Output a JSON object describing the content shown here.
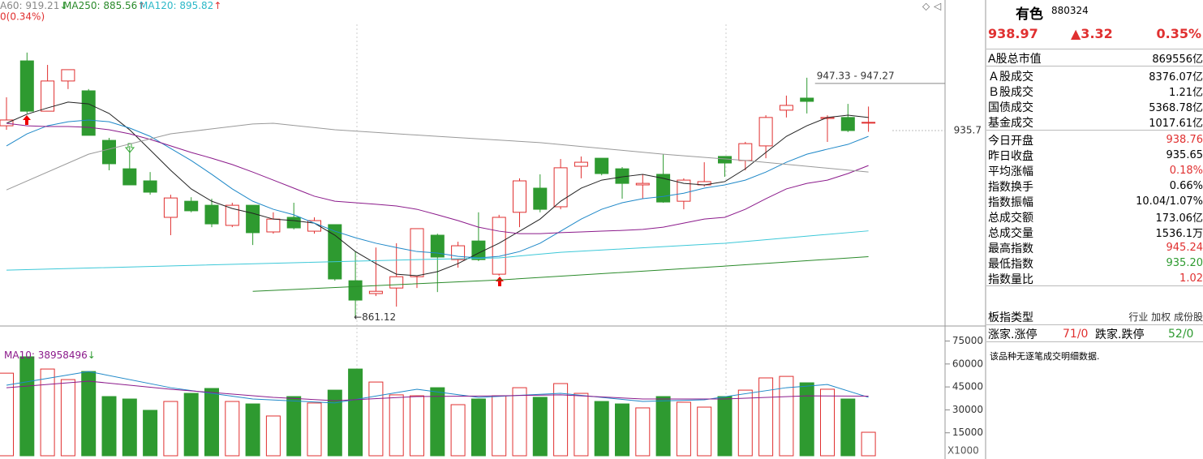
{
  "chart_data": [
    {
      "type": "candlestick",
      "open": [
        937.6,
        963.4,
        943.4,
        955.4,
        951.5,
        931.8,
        920.5,
        915.7,
        901.2,
        907.6,
        906.0,
        898.0,
        906.0,
        895.4,
        901.2,
        895.7,
        898.3,
        876.0,
        870.9,
        873.1,
        877.6,
        894.1,
        884.4,
        891.8,
        878.6,
        903.2,
        912.8,
        905.4,
        921.5,
        924.7,
        920.5,
        914.1,
        918.3,
        907.6,
        914.1,
        925.4,
        923.8,
        929.6,
        943.8,
        948.6,
        940.5,
        940.9,
        938.76
      ],
      "close": [
        939.9,
        943.4,
        955.4,
        959.9,
        933.8,
        922.5,
        914.1,
        911.2,
        908.9,
        903.8,
        898.6,
        906.0,
        895.1,
        900.5,
        897.0,
        899.9,
        876.7,
        868.3,
        871.8,
        877.6,
        896.7,
        885.4,
        889.9,
        884.4,
        901.2,
        915.7,
        904.4,
        920.9,
        923.1,
        918.6,
        914.7,
        914.7,
        907.3,
        916.0,
        915.4,
        922.8,
        930.5,
        940.9,
        945.7,
        947.3,
        940.9,
        935.7,
        938.97
      ],
      "high": [
        948.9,
        966.7,
        961.8,
        959.9,
        952.2,
        932.8,
        929.6,
        919.2,
        910.2,
        909.2,
        908.6,
        907.0,
        906.0,
        903.2,
        907.0,
        901.2,
        898.3,
        887.6,
        889.2,
        890.9,
        896.7,
        894.7,
        891.5,
        903.2,
        902.2,
        916.7,
        918.3,
        924.4,
        925.4,
        924.7,
        921.2,
        918.3,
        926.3,
        916.7,
        923.1,
        925.4,
        931.2,
        941.8,
        949.6,
        956.7,
        941.8,
        946.3,
        945.24
      ],
      "low": [
        936.0,
        942.5,
        943.4,
        952.2,
        933.8,
        919.9,
        914.1,
        910.2,
        894.1,
        903.2,
        897.3,
        897.3,
        890.2,
        894.7,
        896.4,
        894.7,
        876.0,
        861.12,
        869.9,
        865.7,
        873.1,
        871.5,
        881.2,
        883.8,
        878.0,
        897.3,
        903.2,
        904.4,
        916.7,
        917.9,
        908.6,
        908.6,
        907.0,
        904.4,
        913.4,
        917.3,
        919.9,
        924.7,
        940.9,
        942.5,
        931.2,
        935.1,
        935.2
      ],
      "up_color": "#e03030",
      "down_color": "#2e9a30",
      "lines": [
        {
          "color": "#222222",
          "values": [
            938.6,
            942.2,
            944.7,
            947.0,
            946.3,
            942.5,
            936.0,
            928.0,
            919.9,
            912.5,
            907.6,
            904.7,
            902.8,
            900.5,
            899.9,
            898.9,
            894.1,
            887.6,
            882.8,
            878.6,
            878.0,
            879.6,
            882.8,
            887.0,
            890.9,
            895.7,
            900.5,
            907.6,
            912.8,
            916.0,
            917.3,
            918.3,
            916.7,
            914.7,
            914.1,
            915.4,
            920.5,
            927.0,
            933.4,
            937.6,
            940.9,
            941.8,
            940.9
          ]
        },
        {
          "color": "#1e88c8",
          "values": [
            929.6,
            934.4,
            937.6,
            939.2,
            939.9,
            939.2,
            936.7,
            933.4,
            928.6,
            923.8,
            918.3,
            912.5,
            907.6,
            904.4,
            902.2,
            898.9,
            895.7,
            893.1,
            890.9,
            889.2,
            887.6,
            887.0,
            885.7,
            885.1,
            885.7,
            887.6,
            890.9,
            895.7,
            900.5,
            904.4,
            907.0,
            908.6,
            909.5,
            910.8,
            912.8,
            914.1,
            916.0,
            919.2,
            923.1,
            926.3,
            928.3,
            930.2,
            933.4
          ]
        },
        {
          "color": "#8b1a8b",
          "values": [
            938.6,
            937.6,
            937.3,
            937.3,
            937.0,
            936.0,
            934.4,
            932.2,
            929.6,
            927.0,
            924.7,
            922.2,
            919.2,
            916.0,
            912.8,
            909.6,
            907.6,
            907.0,
            906.4,
            905.7,
            904.4,
            902.2,
            899.9,
            897.3,
            895.7,
            894.7,
            894.7,
            895.1,
            895.4,
            895.7,
            896.0,
            896.4,
            897.3,
            898.9,
            900.5,
            901.2,
            904.4,
            908.6,
            912.5,
            914.7,
            916.0,
            918.6,
            921.8
          ]
        },
        {
          "color": "#999999",
          "x": [
            0,
            4,
            8,
            12,
            13,
            16,
            21,
            26,
            32,
            36,
            42
          ],
          "values": [
            912.1,
            926.3,
            934.4,
            938.3,
            938.6,
            936.0,
            933.4,
            930.9,
            926.3,
            923.8,
            919.21
          ]
        },
        {
          "color": "#3cc8d8",
          "x": [
            0,
            20,
            24,
            27,
            35,
            42
          ],
          "values": [
            880.2,
            884.4,
            885.1,
            887.3,
            890.9,
            895.82
          ]
        },
        {
          "color": "#2a8a2a",
          "x": [
            12,
            24,
            35,
            42
          ],
          "values": [
            871.8,
            876.3,
            881.8,
            885.56
          ]
        }
      ],
      "ylim": [
        858.0,
        987.6
      ],
      "yticks": [
        935.7
      ],
      "ma_texts": [
        {
          "text": "A60: 919.21",
          "arrow": "↓",
          "color": "#888888",
          "arrow_color": "#2e9a30"
        },
        {
          "text": "MA250: 885.56",
          "arrow": "↑",
          "color": "#2a8a2a",
          "arrow_color": "#e03030"
        },
        {
          "text": "MA120: 895.82",
          "arrow": "↑",
          "color": "#2cb8c8",
          "arrow_color": "#e03030"
        }
      ],
      "sub_text": "0(0.34%)",
      "annotations": [
        "947.33 - 947.27",
        "←861.12"
      ]
    },
    {
      "type": "volume",
      "values": [
        54000,
        64700,
        56700,
        49800,
        55100,
        38700,
        37100,
        29700,
        35500,
        40800,
        44000,
        35500,
        33900,
        26000,
        38700,
        34500,
        42900,
        56700,
        48200,
        39800,
        39200,
        44500,
        33400,
        37100,
        39200,
        44500,
        38200,
        47200,
        40800,
        35500,
        33900,
        31300,
        38700,
        35000,
        31800,
        38700,
        42900,
        50900,
        51900,
        47700,
        43500,
        37100,
        15361
      ],
      "lines": [
        {
          "color": "#1e88c8",
          "x": [
            0,
            4,
            8,
            12,
            16,
            20,
            23,
            27,
            31,
            34,
            38,
            40,
            42
          ],
          "values": [
            46100,
            55100,
            44500,
            37100,
            34500,
            43500,
            38200,
            40800,
            35500,
            36600,
            44500,
            46600,
            38200
          ]
        },
        {
          "color": "#8b1a8b",
          "x": [
            0,
            4,
            8,
            13,
            16,
            20,
            24,
            27,
            31,
            35,
            39,
            42
          ],
          "values": [
            44500,
            48800,
            43500,
            38200,
            36000,
            38700,
            39200,
            39800,
            37100,
            37100,
            39200,
            38958.496
          ]
        }
      ],
      "ylim": [
        0,
        84300
      ],
      "yticks": [
        15000,
        30000,
        45000,
        60000,
        75000
      ],
      "y_unit": "X1000",
      "ma_text": "MA10: 38958496",
      "ma_arrow": "↓",
      "ma_color": "#8b1a8b",
      "ma_arrow_color": "#2e9a30"
    }
  ],
  "panel": {
    "name": "有色",
    "code": "880324",
    "price": "938.97",
    "change": "▲3.32",
    "pct": "0.35%",
    "sections": [
      [
        {
          "label": "A股总市值",
          "value": "869556亿",
          "color": "#000000"
        }
      ],
      [
        {
          "label": "Ａ股成交",
          "value": "8376.07亿",
          "color": "#000000"
        },
        {
          "label": "Ｂ股成交",
          "value": "1.21亿",
          "color": "#000000"
        },
        {
          "label": "国债成交",
          "value": "5368.78亿",
          "color": "#000000"
        },
        {
          "label": "基金成交",
          "value": "1017.61亿",
          "color": "#000000"
        }
      ],
      [
        {
          "label": "今日开盘",
          "value": "938.76",
          "color": "#e03030"
        },
        {
          "label": "昨日收盘",
          "value": "935.65",
          "color": "#000000"
        },
        {
          "label": "平均涨幅",
          "value": "0.18%",
          "color": "#e03030"
        },
        {
          "label": "指数换手",
          "value": "0.66%",
          "color": "#000000"
        },
        {
          "label": "指数振幅",
          "value": "10.04/1.07%",
          "color": "#000000"
        },
        {
          "label": "总成交额",
          "value": "173.06亿",
          "color": "#000000"
        },
        {
          "label": "总成交量",
          "value": "1536.1万",
          "color": "#000000"
        },
        {
          "label": "最高指数",
          "value": "945.24",
          "color": "#e03030"
        },
        {
          "label": "最低指数",
          "value": "935.20",
          "color": "#2e9a30"
        },
        {
          "label": "指数量比",
          "value": "1.02",
          "color": "#e03030"
        }
      ]
    ],
    "type_label": "板指类型",
    "type_value": "行业 加权 成份股",
    "rise_label": "涨家.涨停",
    "rise_value": "71/0",
    "fall_label": "跌家.跌停",
    "fall_value": "52/0",
    "note": "该品种无逐笔成交明细数据."
  }
}
